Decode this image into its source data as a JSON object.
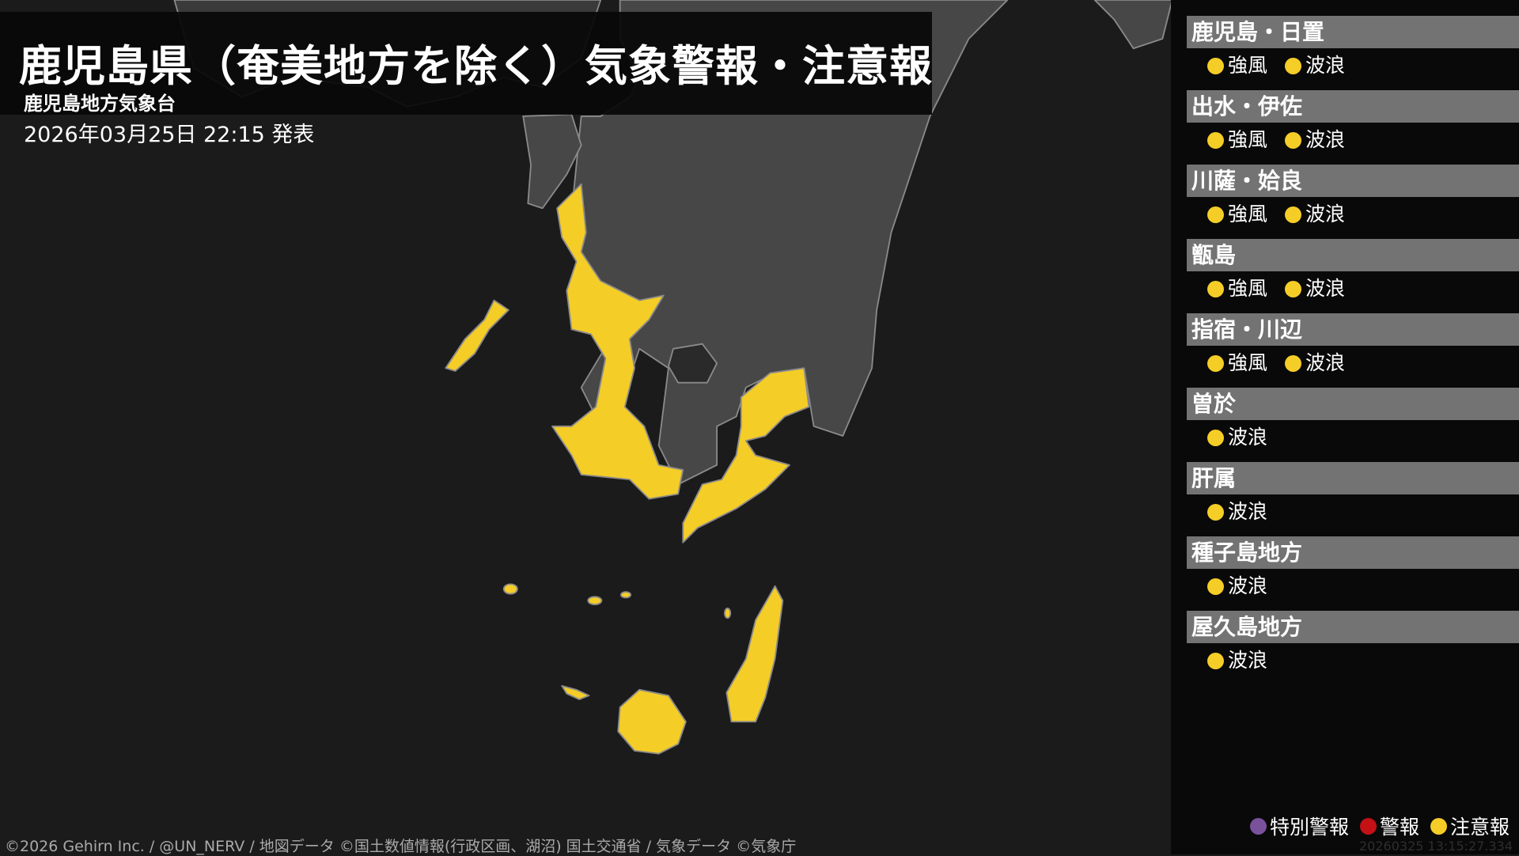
{
  "header": {
    "title": "鹿児島県（奄美地方を除く）気象警報・注意報",
    "office": "鹿児島地方気象台",
    "issued": "2026年03月25日 22:15 発表"
  },
  "colors": {
    "special_warning": "#7a519b",
    "warning": "#c31116",
    "advisory": "#f5cd27",
    "land": "#474747",
    "sea": "#1b1b1b"
  },
  "areas": [
    {
      "name": "鹿児島・日置",
      "items": [
        "強風",
        "波浪"
      ]
    },
    {
      "name": "出水・伊佐",
      "items": [
        "強風",
        "波浪"
      ]
    },
    {
      "name": "川薩・姶良",
      "items": [
        "強風",
        "波浪"
      ]
    },
    {
      "name": "甑島",
      "items": [
        "強風",
        "波浪"
      ]
    },
    {
      "name": "指宿・川辺",
      "items": [
        "強風",
        "波浪"
      ]
    },
    {
      "name": "曽於",
      "items": [
        "波浪"
      ]
    },
    {
      "name": "肝属",
      "items": [
        "波浪"
      ]
    },
    {
      "name": "種子島地方",
      "items": [
        "波浪"
      ]
    },
    {
      "name": "屋久島地方",
      "items": [
        "波浪"
      ]
    }
  ],
  "legend": [
    {
      "label": "特別警報",
      "color": "#7a519b"
    },
    {
      "label": "警報",
      "color": "#c31116"
    },
    {
      "label": "注意報",
      "color": "#f5cd27"
    }
  ],
  "timestamp": "20260325 13:15:27.334",
  "credit": "©2026 Gehirn Inc. / @UN_NERV / 地図データ ©国土数値情報(行政区画、湖沼) 国土交通省 / 気象データ ©気象庁"
}
